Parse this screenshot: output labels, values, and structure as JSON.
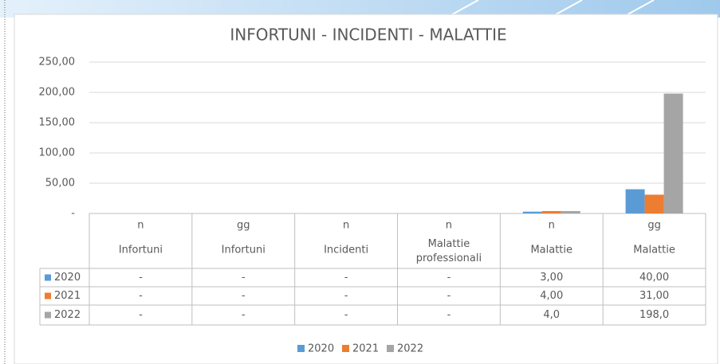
{
  "chart_data": {
    "type": "bar",
    "title": "INFORTUNI - INCIDENTI - MALATTIE",
    "categories": [
      [
        "n",
        "Infortuni"
      ],
      [
        "gg",
        "Infortuni"
      ],
      [
        "n",
        "Incidenti"
      ],
      [
        "n",
        "Malattie professionali"
      ],
      [
        "n",
        "Malattie"
      ],
      [
        "gg",
        "Malattie"
      ]
    ],
    "series": [
      {
        "name": "2020",
        "color": "#5b9bd5",
        "values": [
          0,
          0,
          0,
          0,
          3,
          40
        ],
        "value_labels": [
          "-",
          "-",
          "-",
          "-",
          "3,00",
          "40,00"
        ]
      },
      {
        "name": "2021",
        "color": "#ed7d31",
        "values": [
          0,
          0,
          0,
          0,
          4,
          31
        ],
        "value_labels": [
          "-",
          "-",
          "-",
          "-",
          "4,00",
          "31,00"
        ]
      },
      {
        "name": "2022",
        "color": "#a5a5a5",
        "values": [
          0,
          0,
          0,
          0,
          4,
          198
        ],
        "value_labels": [
          "-",
          "-",
          "-",
          "-",
          "4,0",
          "198,0"
        ]
      }
    ],
    "ylim": [
      0,
      250
    ],
    "yticks": [
      {
        "value": 0,
        "label": "-"
      },
      {
        "value": 50,
        "label": "50,00"
      },
      {
        "value": 100,
        "label": "100,00"
      },
      {
        "value": 150,
        "label": "150,00"
      },
      {
        "value": 200,
        "label": "200,00"
      },
      {
        "value": 250,
        "label": "250,00"
      }
    ],
    "grid": true,
    "legend": "bottom"
  }
}
